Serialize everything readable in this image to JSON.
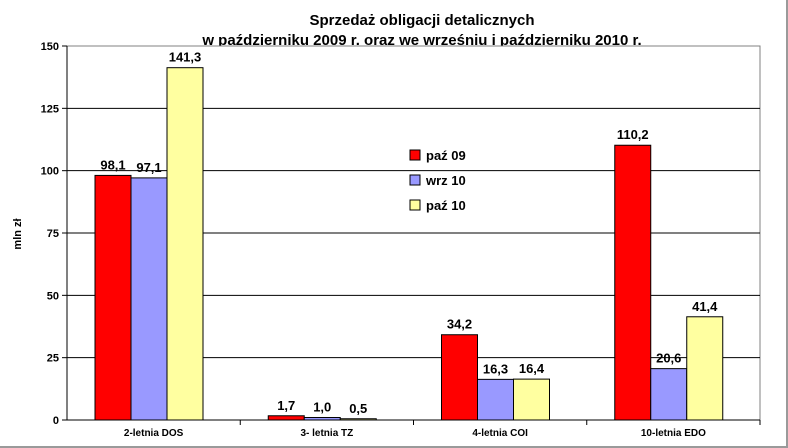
{
  "chart_data": {
    "type": "bar",
    "title": "Sprzedaż obligacji detalicznych",
    "subtitle": "w październiku 2009 r. oraz we wrześniu i październiku 2010 r.",
    "ylabel": "mln zł",
    "xlabel": "",
    "ylim": [
      0,
      150
    ],
    "yticks": [
      0,
      25,
      50,
      75,
      100,
      125,
      150
    ],
    "grid": true,
    "legend_position": "center",
    "categories": [
      "2-letnia DOS",
      "3- letnia TZ",
      "4-letnia COI",
      "10-letnia EDO"
    ],
    "series": [
      {
        "name": "paź 09",
        "color": "#ff0000",
        "values": [
          98.1,
          1.7,
          34.2,
          110.2
        ],
        "labels": [
          "98,1",
          "1,7",
          "34,2",
          "110,2"
        ]
      },
      {
        "name": "wrz 10",
        "color": "#9999ff",
        "values": [
          97.1,
          1.0,
          16.3,
          20.6
        ],
        "labels": [
          "97,1",
          "1,0",
          "16,3",
          "20,6"
        ]
      },
      {
        "name": "paź 10",
        "color": "#ffffa0",
        "values": [
          141.3,
          0.5,
          16.4,
          41.4
        ],
        "labels": [
          "141,3",
          "0,5",
          "16,4",
          "41,4"
        ]
      }
    ]
  }
}
